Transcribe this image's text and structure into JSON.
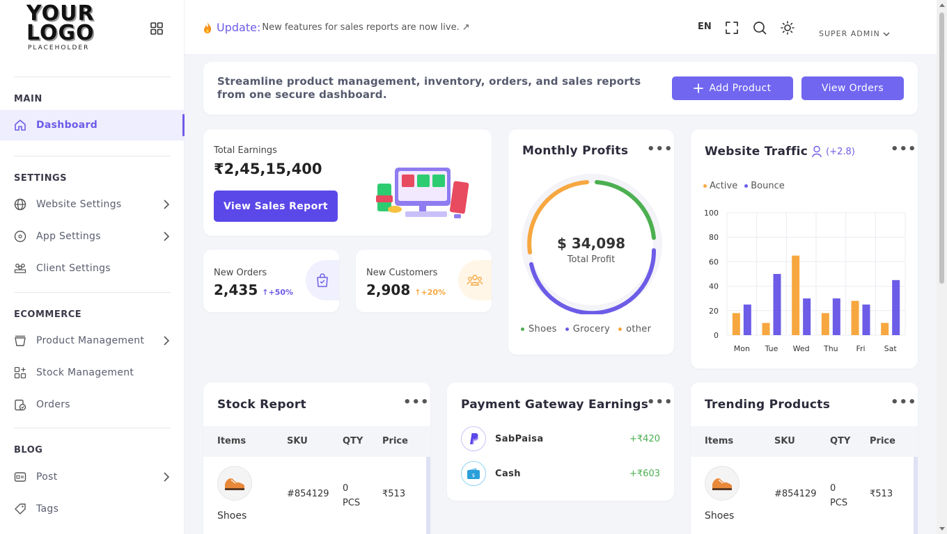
{
  "logo": {
    "main_line1": "YOUR",
    "main_line2": "LOGO",
    "sub": "PLACEHOLDER"
  },
  "sidebar": {
    "sections": [
      {
        "heading": "MAIN"
      },
      {
        "heading": "SETTINGS"
      },
      {
        "heading": "ECOMMERCE"
      },
      {
        "heading": "BLOG"
      }
    ],
    "items": [
      {
        "label": "Dashboard",
        "icon": "home-icon",
        "active": true
      },
      {
        "label": "Website Settings",
        "icon": "globe-icon",
        "chevron": true
      },
      {
        "label": "App Settings",
        "icon": "app-circle-icon",
        "chevron": true
      },
      {
        "label": "Client Settings",
        "icon": "users-group-icon"
      },
      {
        "label": "Product Management",
        "icon": "basket-icon",
        "chevron": true
      },
      {
        "label": "Stock Management",
        "icon": "grid-plus-icon"
      },
      {
        "label": "Orders",
        "icon": "clipboard-check-icon"
      },
      {
        "label": "Post",
        "icon": "post-card-icon",
        "chevron": true
      },
      {
        "label": "Tags",
        "icon": "tag-icon"
      }
    ]
  },
  "topbar": {
    "update_label": "Update:",
    "update_message": "New features for sales reports are now live.",
    "update_arrow": "↗",
    "language": "EN",
    "admin_label": "SUPER ADMIN"
  },
  "banner": {
    "text_line1": "Streamline product management, inventory, orders, and sales reports",
    "text_line2": "from one secure dashboard.",
    "add_product": "Add Product",
    "view_orders": "View Orders"
  },
  "earnings": {
    "label": "Total Earnings",
    "value": "₹2,45,15,400",
    "button": "View Sales Report"
  },
  "new_orders": {
    "label": "New Orders",
    "value": "2,435",
    "change": "+50%"
  },
  "new_customers": {
    "label": "New Customers",
    "value": "2,908",
    "change": "+20%"
  },
  "monthly_profits": {
    "title": "Monthly Profits",
    "value": "$ 34,098",
    "caption": "Total Profit",
    "legend": [
      {
        "name": "Shoes",
        "color": "#4caf50"
      },
      {
        "name": "Grocery",
        "color": "#6c5ce7"
      },
      {
        "name": "other",
        "color": "#f7a740"
      }
    ]
  },
  "website_traffic": {
    "title": "Website Traffic",
    "change": "(+2.8)",
    "legend_active": "Active",
    "legend_bounce": "Bounce"
  },
  "chart_data": {
    "type": "bar",
    "categories": [
      "Mon",
      "Tue",
      "Wed",
      "Thu",
      "Fri",
      "Sat"
    ],
    "series": [
      {
        "name": "Active",
        "color": "#f7a740",
        "values": [
          18,
          10,
          65,
          18,
          28,
          10
        ]
      },
      {
        "name": "Bounce",
        "color": "#6c5ce7",
        "values": [
          25,
          50,
          30,
          30,
          25,
          45
        ]
      }
    ],
    "ylim": [
      0,
      100
    ],
    "yticks": [
      "0",
      "20",
      "40",
      "60",
      "80",
      "100"
    ],
    "grid": true,
    "legend_position": "top-left"
  },
  "stock_report": {
    "title": "Stock Report",
    "headers": [
      "Items",
      "SKU",
      "QTY",
      "Price"
    ],
    "rows": [
      {
        "item": "Shoes",
        "sku": "#854129",
        "qty_line1": "0",
        "qty_line2": "PCS",
        "price": "₹513"
      }
    ]
  },
  "payment_gateway": {
    "title": "Payment Gateway Earnings",
    "rows": [
      {
        "name": "SabPaisa",
        "amount": "+₹420"
      },
      {
        "name": "Cash",
        "amount": "+₹603"
      }
    ]
  },
  "trending_products": {
    "title": "Trending Products",
    "headers": [
      "Items",
      "SKU",
      "QTY",
      "Price"
    ],
    "rows": [
      {
        "item": "Shoes",
        "sku": "#854129",
        "qty_line1": "0",
        "qty_line2": "PCS",
        "price": "₹513"
      }
    ]
  }
}
